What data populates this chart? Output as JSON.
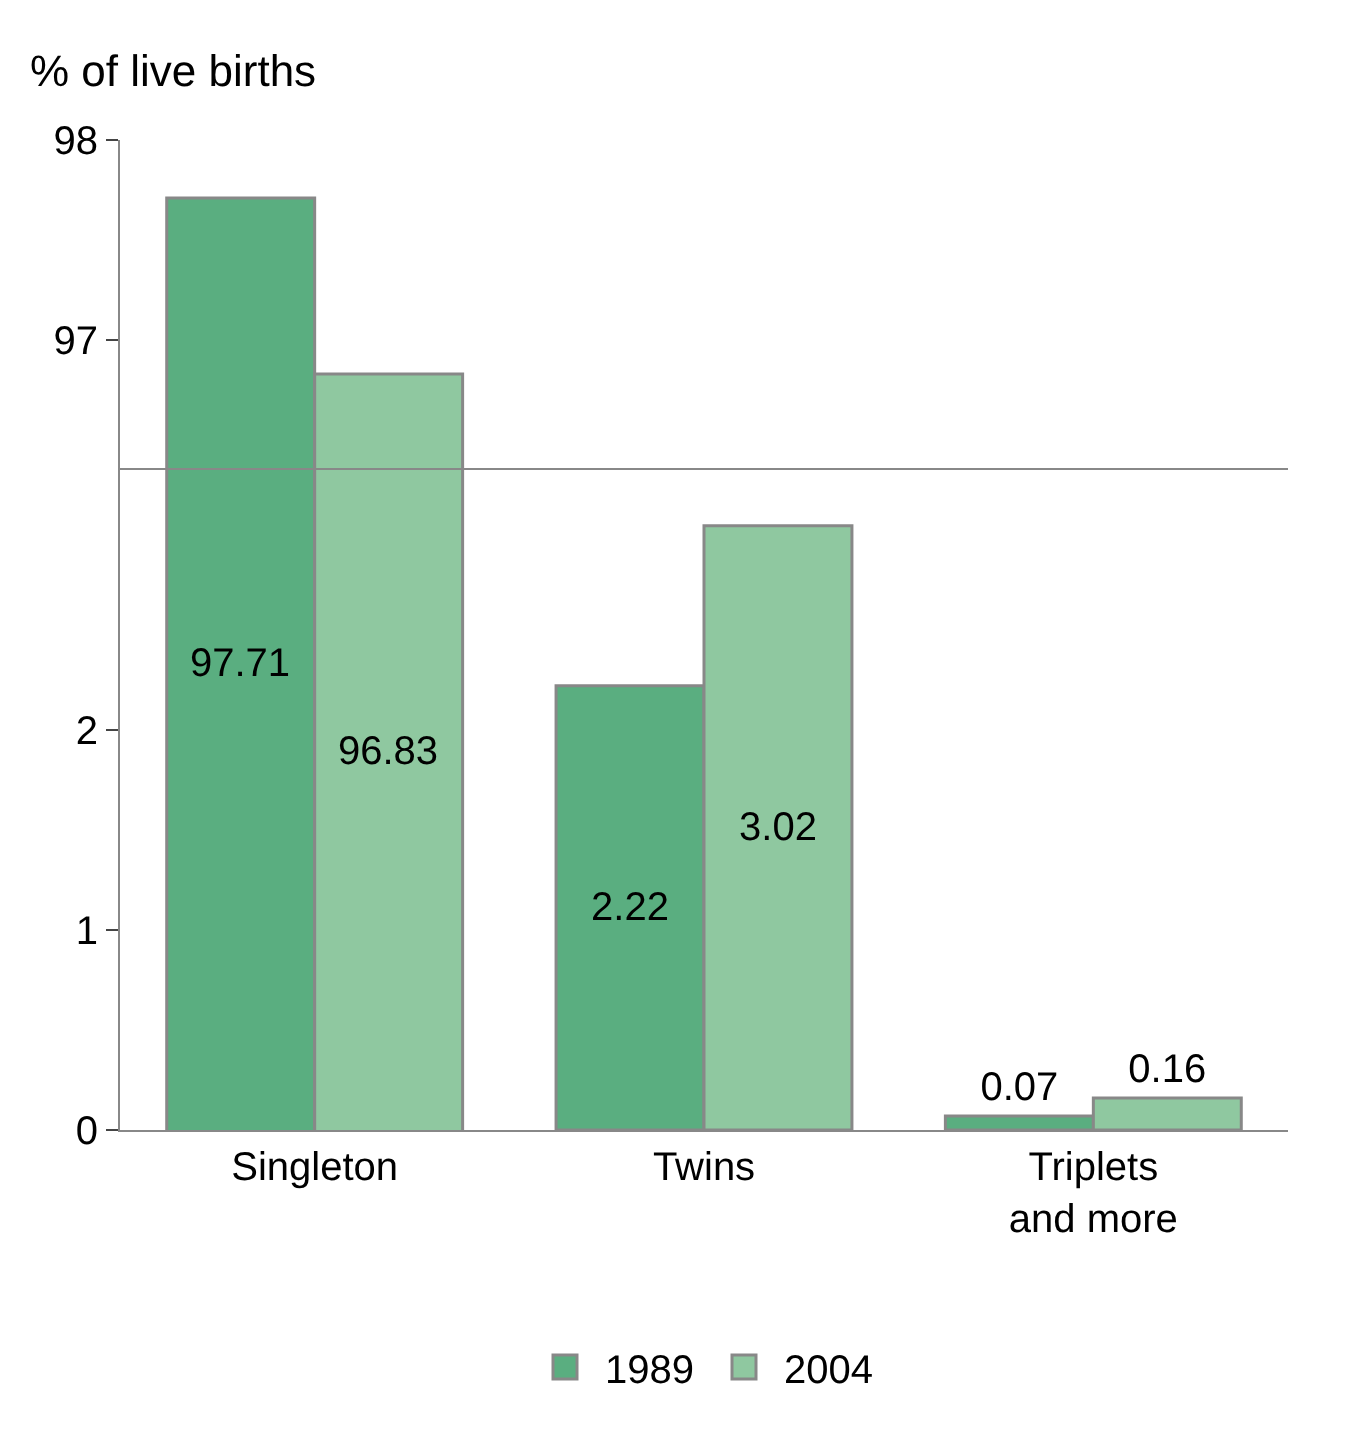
{
  "chart_data": [
    {
      "type": "bar",
      "ylabel": "% of live births",
      "categories": [
        "Singleton",
        "Twins",
        "Triplets\nand more"
      ],
      "series": [
        {
          "name": "1989",
          "color": "#5aae80",
          "values": [
            97.71,
            null,
            null
          ]
        },
        {
          "name": "2004",
          "color": "#8fc8a0",
          "values": [
            96.83,
            null,
            null
          ]
        }
      ],
      "ylim": [
        93.05,
        98
      ],
      "yticks": [
        97,
        98
      ],
      "legend": "bottom",
      "data_labels": true
    },
    {
      "type": "bar",
      "categories": [
        null,
        null,
        null
      ],
      "series": [
        {
          "name": "1989",
          "color": "#5aae80",
          "values": [
            null,
            2.22,
            0.07
          ]
        },
        {
          "name": "2004",
          "color": "#8fc8a0",
          "values": [
            null,
            3.02,
            0.16
          ]
        }
      ],
      "ylim": [
        0,
        3.3
      ],
      "yticks": [
        0,
        1,
        2
      ],
      "tick_labels": "y",
      "data_labels": true
    }
  ]
}
